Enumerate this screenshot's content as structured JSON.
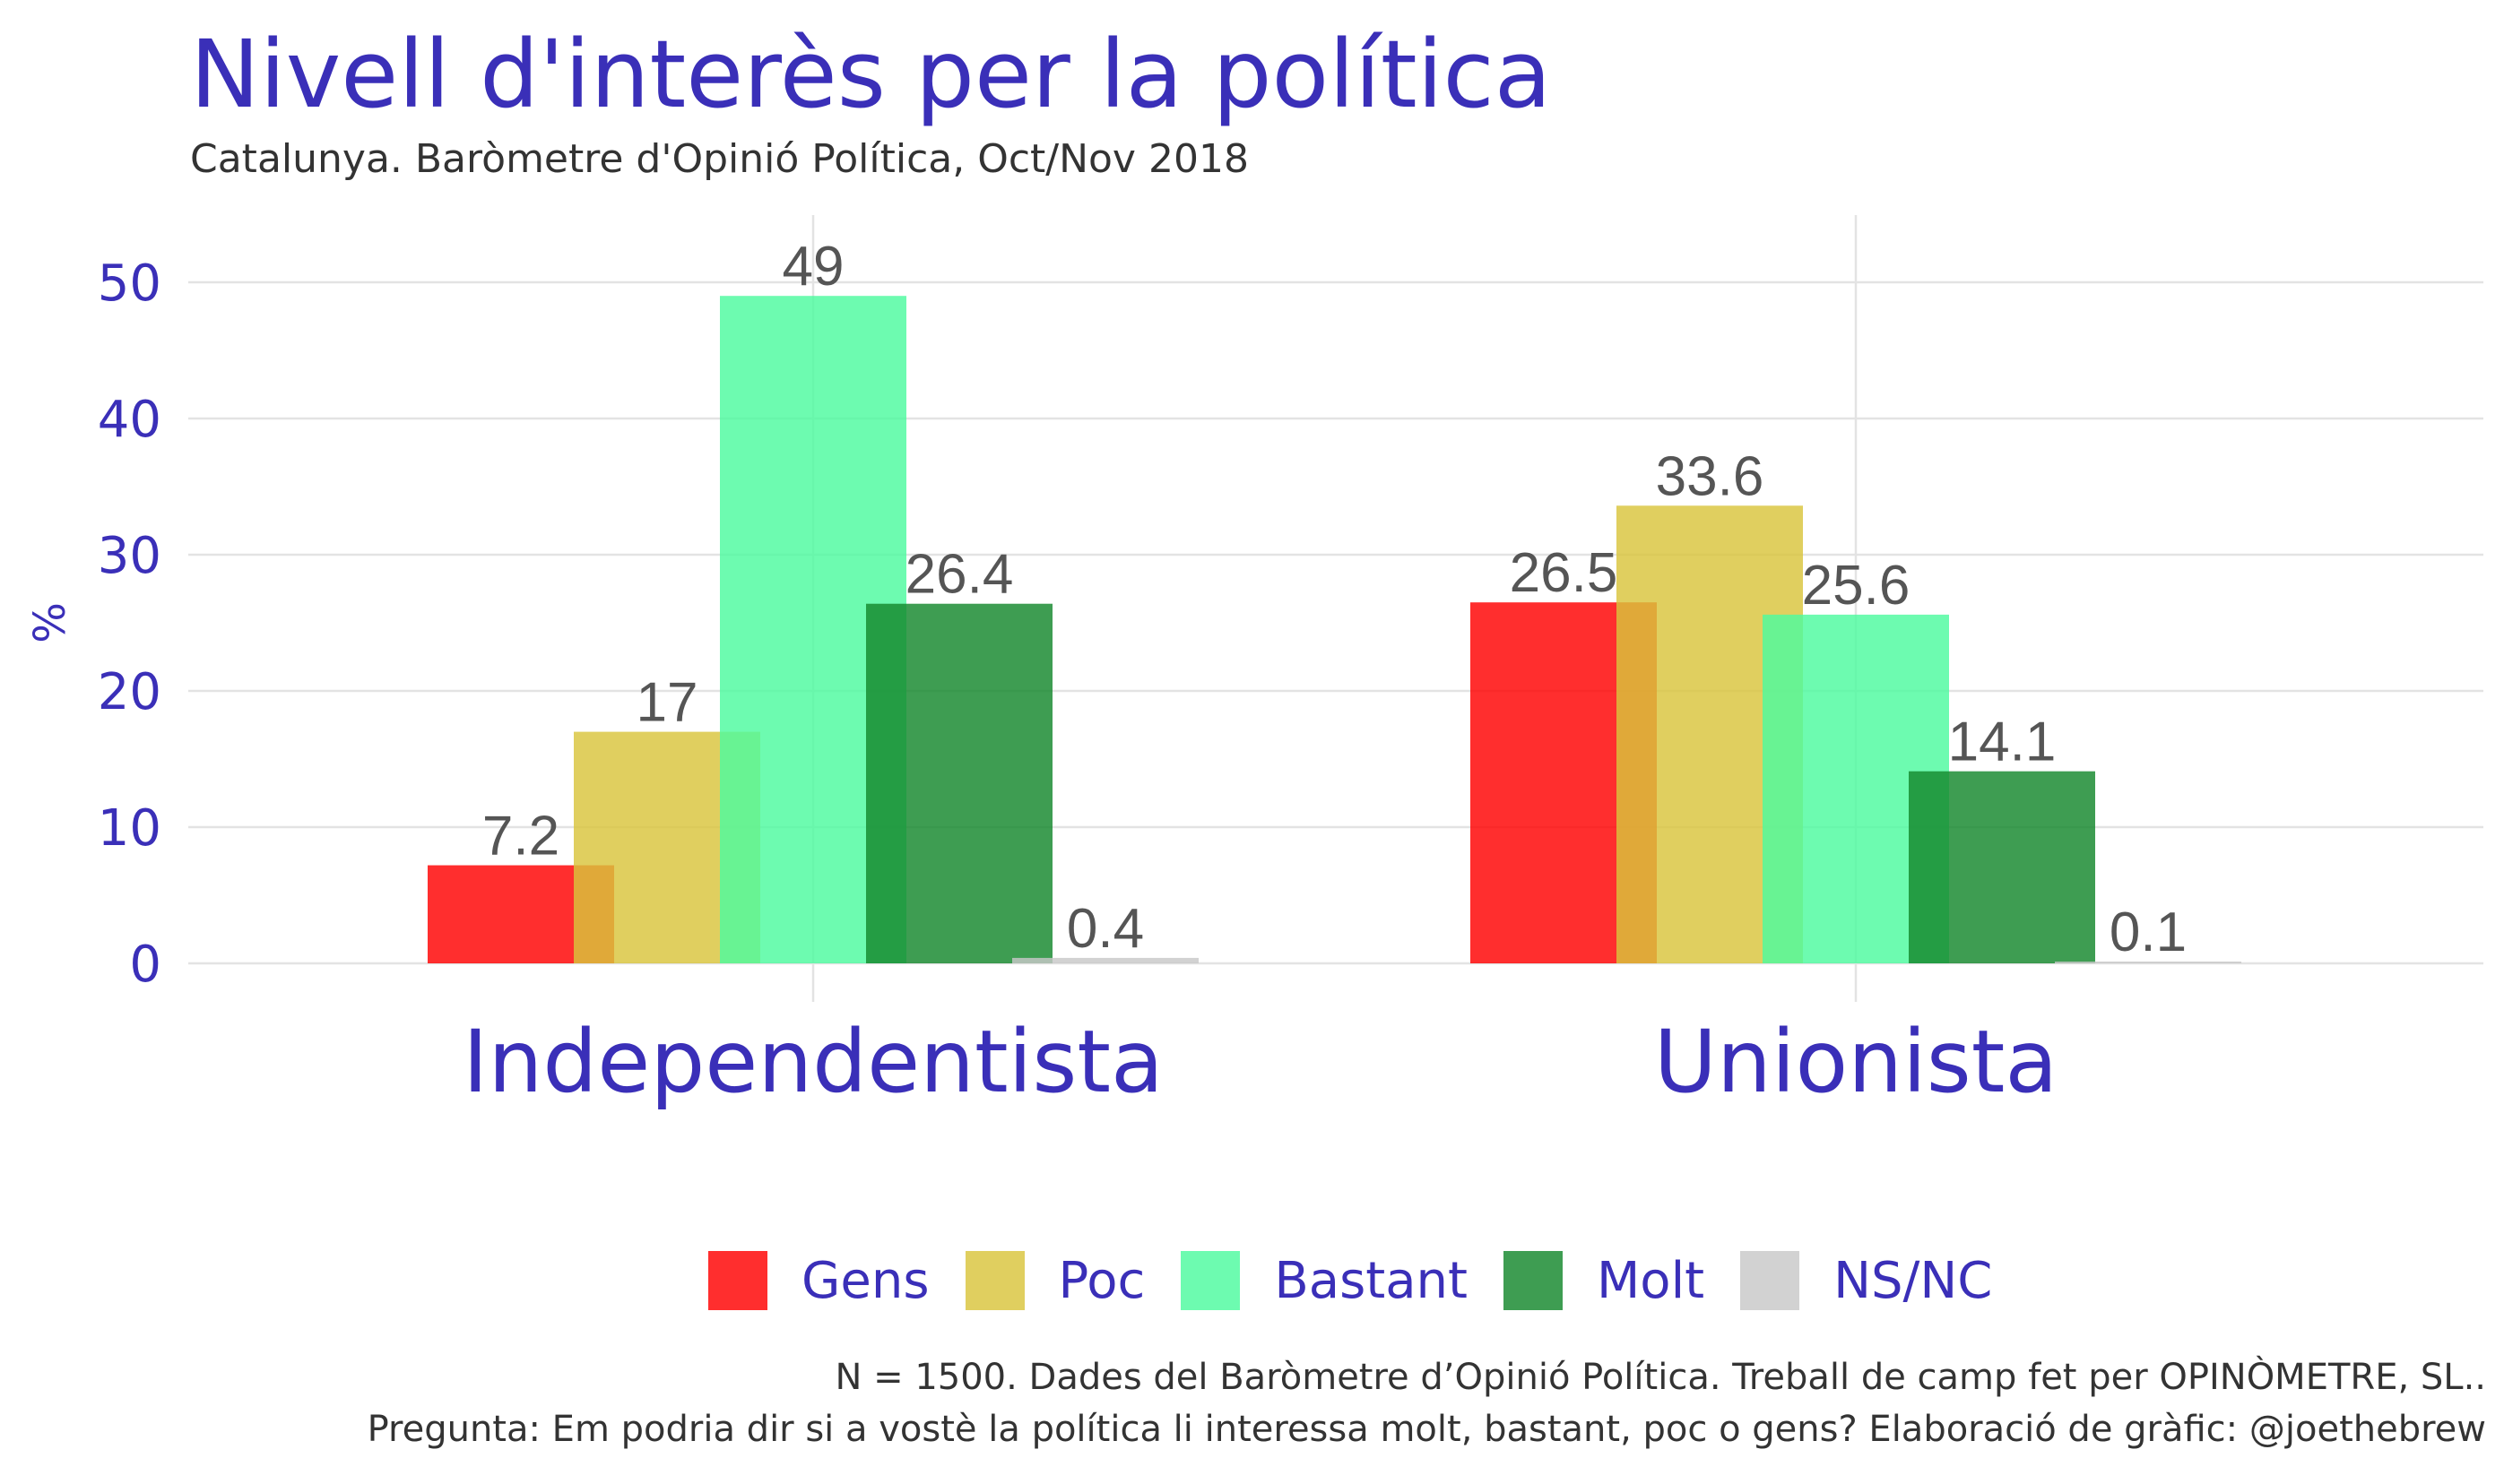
{
  "chart_data": {
    "type": "bar",
    "title": "Nivell d'interès per la política",
    "subtitle": "Catalunya. Baròmetre d'Opinió Política, Oct/Nov 2018",
    "ylabel": "%",
    "xlabel": "",
    "ylim": [
      0,
      54
    ],
    "yticks": [
      0,
      10,
      20,
      30,
      40,
      50
    ],
    "categories": [
      "Independentista",
      "Unionista"
    ],
    "series": [
      {
        "name": "Gens",
        "color": "#ff0000",
        "values": [
          7.2,
          26.5
        ],
        "labels": [
          "7.2",
          "26.5"
        ]
      },
      {
        "name": "Poc",
        "color": "#d9c43c",
        "values": [
          17,
          33.6
        ],
        "labels": [
          "17",
          "33.6"
        ]
      },
      {
        "name": "Bastant",
        "color": "#4dfa9f",
        "values": [
          49,
          25.6
        ],
        "labels": [
          "49",
          "25.6"
        ]
      },
      {
        "name": "Molt",
        "color": "#14882c",
        "values": [
          26.4,
          14.1
        ],
        "labels": [
          "26.4",
          "14.1"
        ]
      },
      {
        "name": "NS/NC",
        "color": "#c8c8c8",
        "values": [
          0.4,
          0.1
        ],
        "labels": [
          "0.4",
          "0.1"
        ]
      }
    ],
    "grid": true,
    "legend_position": "bottom"
  },
  "caption": {
    "line1": "N = 1500. Dades del Baròmetre d’Opinió Política. Treball de camp fet per OPINÒMETRE, SL..",
    "line2": "Pregunta:  Em podria dir si a vostè la política li interessa molt, bastant, poc o gens? Elaboració de gràfic: @joethebrew"
  }
}
